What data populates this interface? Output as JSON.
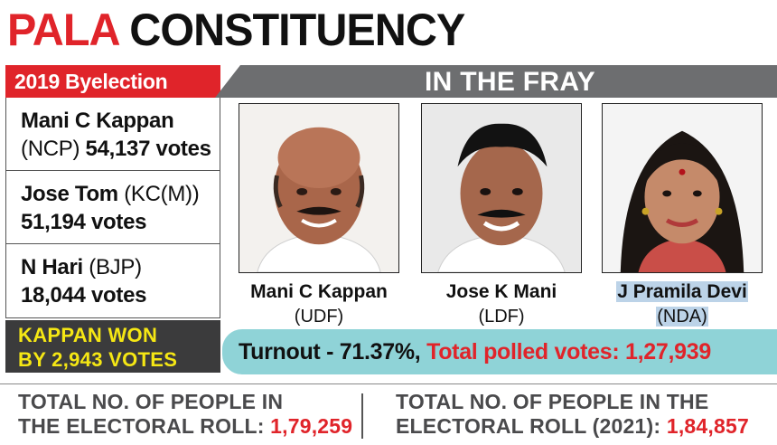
{
  "header": {
    "title_red": "PALA",
    "title_black": "CONSTITUENCY"
  },
  "byelection": {
    "label": "2019 Byelection",
    "results": [
      {
        "name": "Mani C Kappan",
        "party_line": "(NCP)",
        "votes": "54,137 votes"
      },
      {
        "name": "Jose Tom",
        "party_line": "(KC(M))",
        "votes": "51,194  votes"
      },
      {
        "name": "N Hari",
        "party_line": "(BJP)",
        "votes": "18,044  votes"
      }
    ],
    "won_line1": "KAPPAN WON",
    "won_line2": "BY 2,943 VOTES"
  },
  "fray": {
    "heading": "IN THE FRAY",
    "candidates": [
      {
        "name": "Mani C Kappan",
        "party": "(UDF)"
      },
      {
        "name": "Jose K Mani",
        "party": "(LDF)"
      },
      {
        "name": "J Pramila Devi",
        "party": "(NDA)"
      }
    ]
  },
  "turnout": {
    "text": "Turnout - 71.37%,",
    "polled": "Total polled votes: 1,27,939"
  },
  "electoral_roll": {
    "left_line1": "TOTAL NO. OF PEOPLE IN",
    "left_line2": "THE ELECTORAL ROLL:",
    "left_value": "1,79,259",
    "right_line1": "TOTAL NO. OF PEOPLE IN THE",
    "right_line2": "ELECTORAL ROLL (2021):",
    "right_value": "1,84,857"
  },
  "colors": {
    "accent_red": "#e0242a",
    "gray_bar": "#6d6e70",
    "turnout_bg": "#8fd3d7",
    "won_bg": "#3b3b3c",
    "won_text": "#f5e714"
  }
}
